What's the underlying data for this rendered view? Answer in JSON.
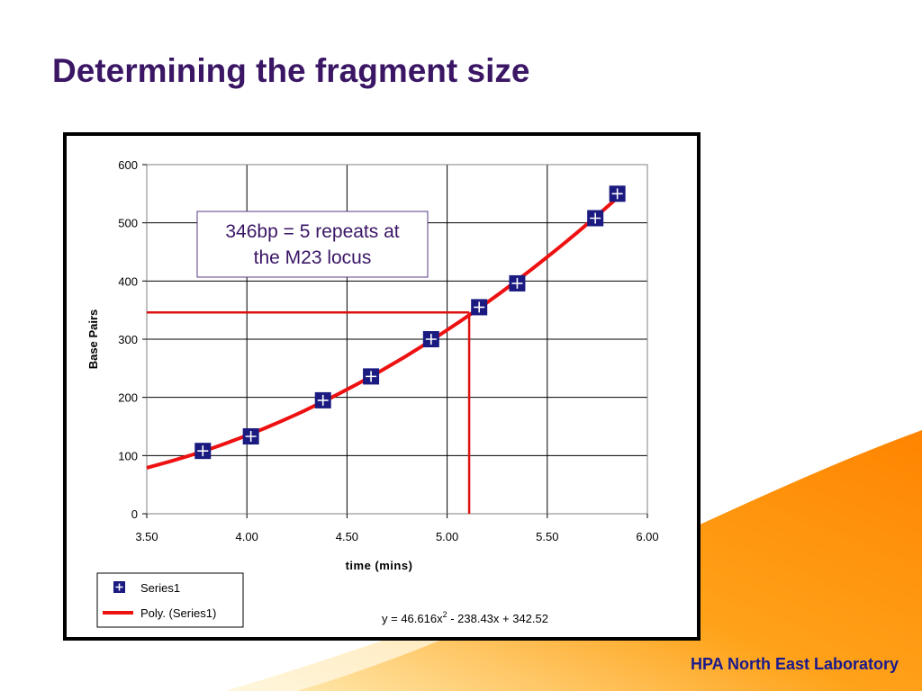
{
  "slide": {
    "title": "Determining the fragment size",
    "footer": "HPA North East Laboratory"
  },
  "colors": {
    "title": "#3a1665",
    "footer": "#1a1a8c",
    "marker": "#1a1a80",
    "trendline": "#ee1111",
    "guideline": "#dd1111",
    "annotation_text": "#3a1665",
    "swoosh_orange": "#ff8c00",
    "swoosh_light": "#ffd080"
  },
  "chart_data": {
    "type": "scatter",
    "xlabel": "time (mins)",
    "ylabel": "Base Pairs",
    "xlim": [
      3.5,
      6.0
    ],
    "ylim": [
      0,
      600
    ],
    "x_ticks": [
      "3.50",
      "4.00",
      "4.50",
      "5.00",
      "5.50",
      "6.00"
    ],
    "y_ticks": [
      "0",
      "100",
      "200",
      "300",
      "400",
      "500",
      "600"
    ],
    "grid": true,
    "series": [
      {
        "name": "Series1",
        "marker": "square-plus",
        "points": [
          {
            "x": 3.78,
            "y": 108
          },
          {
            "x": 4.02,
            "y": 133
          },
          {
            "x": 4.38,
            "y": 195
          },
          {
            "x": 4.62,
            "y": 236
          },
          {
            "x": 4.92,
            "y": 300
          },
          {
            "x": 5.16,
            "y": 355
          },
          {
            "x": 5.35,
            "y": 396
          },
          {
            "x": 5.74,
            "y": 508
          },
          {
            "x": 5.85,
            "y": 550
          }
        ]
      }
    ],
    "trendline": {
      "name": "Poly. (Series1)",
      "coefficients": [
        46.616,
        -238.43,
        342.52
      ],
      "x_range": [
        3.5,
        5.85
      ],
      "equation_prefix": "y = 46.616x",
      "equation_sup": "2",
      "equation_suffix": " - 238.43x + 342.52"
    },
    "guide_lines": {
      "y_value": 346,
      "x_value": 5.11
    },
    "annotation": {
      "line1": "346bp = 5 repeats at",
      "line2": "the M23 locus"
    },
    "legend": {
      "placement": "bottom-left",
      "entries": [
        "Series1",
        "Poly. (Series1)"
      ]
    }
  }
}
